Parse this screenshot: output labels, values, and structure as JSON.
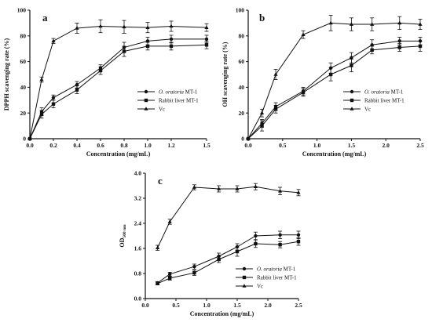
{
  "chart_data": [
    {
      "type": "line",
      "panel": "a",
      "xlabel": "Concentration (mg/mL)",
      "ylabel": "DPPH scavenging rate (%)",
      "xlim": [
        0,
        1.5
      ],
      "ylim": [
        0,
        100
      ],
      "xticks": [
        "0.0",
        "0.2",
        "0.4",
        "0.6",
        "0.8",
        "1.0",
        "1.2",
        "1.5"
      ],
      "xtick_values": [
        0,
        0.2,
        0.4,
        0.6,
        0.8,
        1.0,
        1.2,
        1.5
      ],
      "yticks": [
        "0",
        "20",
        "40",
        "60",
        "80",
        "100"
      ],
      "ytick_values": [
        0,
        20,
        40,
        60,
        80,
        100
      ],
      "legend_position": "center-right",
      "series": [
        {
          "name": "O. oratoria MT-1",
          "marker": "circle",
          "italic_part": "O. oratoria",
          "rest": " MT-1",
          "x": [
            0,
            0.1,
            0.2,
            0.4,
            0.6,
            0.8,
            1.0,
            1.2,
            1.5
          ],
          "y": [
            0,
            21,
            32,
            42,
            55,
            71,
            76,
            77.5,
            77.5
          ],
          "err": [
            0,
            3,
            2,
            2.5,
            2.5,
            4,
            3,
            3,
            3
          ]
        },
        {
          "name": "Rabbit liver MT-1",
          "marker": "square",
          "italic_part": "",
          "rest": "Rabbit liver MT-1",
          "x": [
            0,
            0.1,
            0.2,
            0.4,
            0.6,
            0.8,
            1.0,
            1.2,
            1.5
          ],
          "y": [
            0,
            19,
            27,
            38,
            53,
            68,
            72,
            72,
            73
          ],
          "err": [
            0,
            3,
            3,
            3,
            3,
            4,
            3,
            3,
            3
          ]
        },
        {
          "name": "Vc",
          "marker": "triangle",
          "italic_part": "",
          "rest": "Vc",
          "x": [
            0,
            0.1,
            0.2,
            0.4,
            0.6,
            0.8,
            1.0,
            1.2,
            1.5
          ],
          "y": [
            0,
            46,
            76,
            86,
            87.5,
            87,
            86.5,
            87.5,
            86.5
          ],
          "err": [
            0,
            2,
            2,
            4,
            5,
            5,
            4,
            4,
            3
          ]
        }
      ]
    },
    {
      "type": "line",
      "panel": "b",
      "xlabel": "Concentration (mg/mL)",
      "ylabel": "OH scavenging rate (%)",
      "xlim": [
        0,
        2.5
      ],
      "ylim": [
        0,
        100
      ],
      "xticks": [
        "0.0",
        "0.5",
        "1.0",
        "1.5",
        "2.0",
        "2.5"
      ],
      "xtick_values": [
        0,
        0.5,
        1.0,
        1.5,
        2.0,
        2.5
      ],
      "yticks": [
        "0",
        "20",
        "40",
        "60",
        "80",
        "100"
      ],
      "ytick_values": [
        0,
        20,
        40,
        60,
        80,
        100
      ],
      "legend_position": "bottom-right",
      "series": [
        {
          "name": "O. oratoria MT-1",
          "marker": "circle",
          "italic_part": "O. oratoria",
          "rest": " MT-1",
          "x": [
            0,
            0.2,
            0.4,
            0.8,
            1.2,
            1.5,
            1.8,
            2.2,
            2.5
          ],
          "y": [
            0,
            12,
            25,
            37,
            55,
            63,
            73,
            76,
            76
          ],
          "err": [
            0,
            3,
            3,
            3,
            4,
            4,
            4,
            3,
            3
          ]
        },
        {
          "name": "Rabbit liver MT-1",
          "marker": "square",
          "italic_part": "",
          "rest": "Rabbit liver MT-1",
          "x": [
            0,
            0.2,
            0.4,
            0.8,
            1.2,
            1.5,
            1.8,
            2.2,
            2.5
          ],
          "y": [
            0,
            10,
            23,
            36,
            50,
            57,
            69,
            71,
            72
          ],
          "err": [
            0,
            4,
            3,
            3,
            5,
            5,
            3,
            3,
            4
          ]
        },
        {
          "name": "Vc",
          "marker": "triangle",
          "italic_part": "",
          "rest": "Vc",
          "x": [
            0,
            0.2,
            0.4,
            0.8,
            1.2,
            1.5,
            1.8,
            2.2,
            2.5
          ],
          "y": [
            0,
            20,
            50,
            81,
            90,
            89,
            89,
            90,
            89
          ],
          "err": [
            0,
            3,
            4,
            3,
            6,
            5,
            5,
            5,
            4
          ]
        }
      ]
    },
    {
      "type": "line",
      "panel": "c",
      "xlabel": "Concentration (mg/mL)",
      "ylabel_main": "OD",
      "ylabel_sub": "500 nm",
      "xlim": [
        0,
        2.5
      ],
      "ylim": [
        0,
        4.0
      ],
      "xticks": [
        "0.0",
        "0.5",
        "1.0",
        "1.5",
        "2.0",
        "2.5"
      ],
      "xtick_values": [
        0,
        0.5,
        1.0,
        1.5,
        2.0,
        2.5
      ],
      "yticks": [
        "0.0",
        "0.8",
        "1.6",
        "2.4",
        "3.2",
        "4.0"
      ],
      "ytick_values": [
        0,
        0.8,
        1.6,
        2.4,
        3.2,
        4.0
      ],
      "legend_position": "bottom-right",
      "series": [
        {
          "name": "O. oratoria MT-1",
          "marker": "circle",
          "italic_part": "O. oratoria",
          "rest": " MT-1",
          "x": [
            0.2,
            0.4,
            0.8,
            1.2,
            1.5,
            1.8,
            2.2,
            2.5
          ],
          "y": [
            0.5,
            0.78,
            1.02,
            1.35,
            1.65,
            2.0,
            2.03,
            2.03
          ],
          "err": [
            0.04,
            0.06,
            0.08,
            0.1,
            0.1,
            0.12,
            0.12,
            0.12
          ]
        },
        {
          "name": "Rabbit liver MT-1",
          "marker": "square",
          "italic_part": "",
          "rest": "Rabbit liver MT-1",
          "x": [
            0.2,
            0.4,
            0.8,
            1.2,
            1.5,
            1.8,
            2.2,
            2.5
          ],
          "y": [
            0.48,
            0.65,
            0.82,
            1.25,
            1.5,
            1.75,
            1.72,
            1.82
          ],
          "err": [
            0.04,
            0.06,
            0.08,
            0.1,
            0.15,
            0.12,
            0.1,
            0.12
          ]
        },
        {
          "name": "Vc",
          "marker": "triangle",
          "italic_part": "",
          "rest": "Vc",
          "x": [
            0.2,
            0.4,
            0.8,
            1.2,
            1.5,
            1.8,
            2.2,
            2.5
          ],
          "y": [
            1.62,
            2.45,
            3.55,
            3.5,
            3.5,
            3.57,
            3.43,
            3.38
          ],
          "err": [
            0.08,
            0.08,
            0.08,
            0.1,
            0.1,
            0.1,
            0.12,
            0.1
          ]
        }
      ]
    }
  ]
}
